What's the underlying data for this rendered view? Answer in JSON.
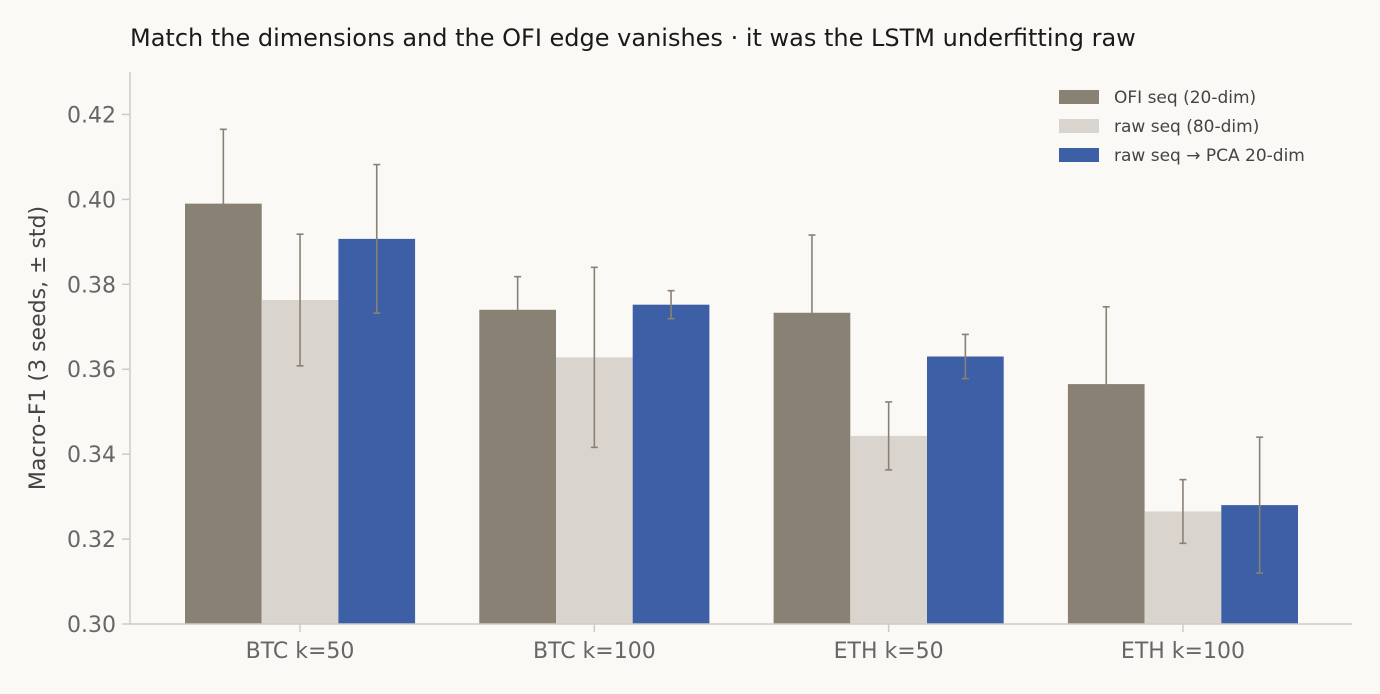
{
  "chart_data": {
    "type": "bar",
    "title": "Match the dimensions and the OFI edge vanishes  ·  it was the LSTM underfitting raw",
    "xlabel": "",
    "ylabel": "Macro-F1  (3 seeds, ± std)",
    "ylim": [
      0.3,
      0.43
    ],
    "yticks": [
      "0.30",
      "0.32",
      "0.34",
      "0.36",
      "0.38",
      "0.40",
      "0.42"
    ],
    "categories": [
      "BTC k=50",
      "BTC k=100",
      "ETH k=50",
      "ETH k=100"
    ],
    "series": [
      {
        "name": "OFI seq (20-dim)",
        "color": "#8a8175",
        "values": [
          0.399,
          0.374,
          0.3733,
          0.3565
        ],
        "errors": [
          0.0175,
          0.0078,
          0.0183,
          0.0182
        ]
      },
      {
        "name": "raw seq (80-dim)",
        "color": "#d9d5ce",
        "values": [
          0.3763,
          0.3628,
          0.3443,
          0.3265
        ],
        "errors": [
          0.0155,
          0.0212,
          0.008,
          0.0075
        ]
      },
      {
        "name": "raw seq → PCA 20-dim",
        "color": "#3d5fa6",
        "values": [
          0.3907,
          0.3752,
          0.363,
          0.328
        ],
        "errors": [
          0.0175,
          0.0033,
          0.0052,
          0.016
        ]
      }
    ],
    "error_color": "#8a8175",
    "grid": false,
    "legend_position": "top-right"
  }
}
